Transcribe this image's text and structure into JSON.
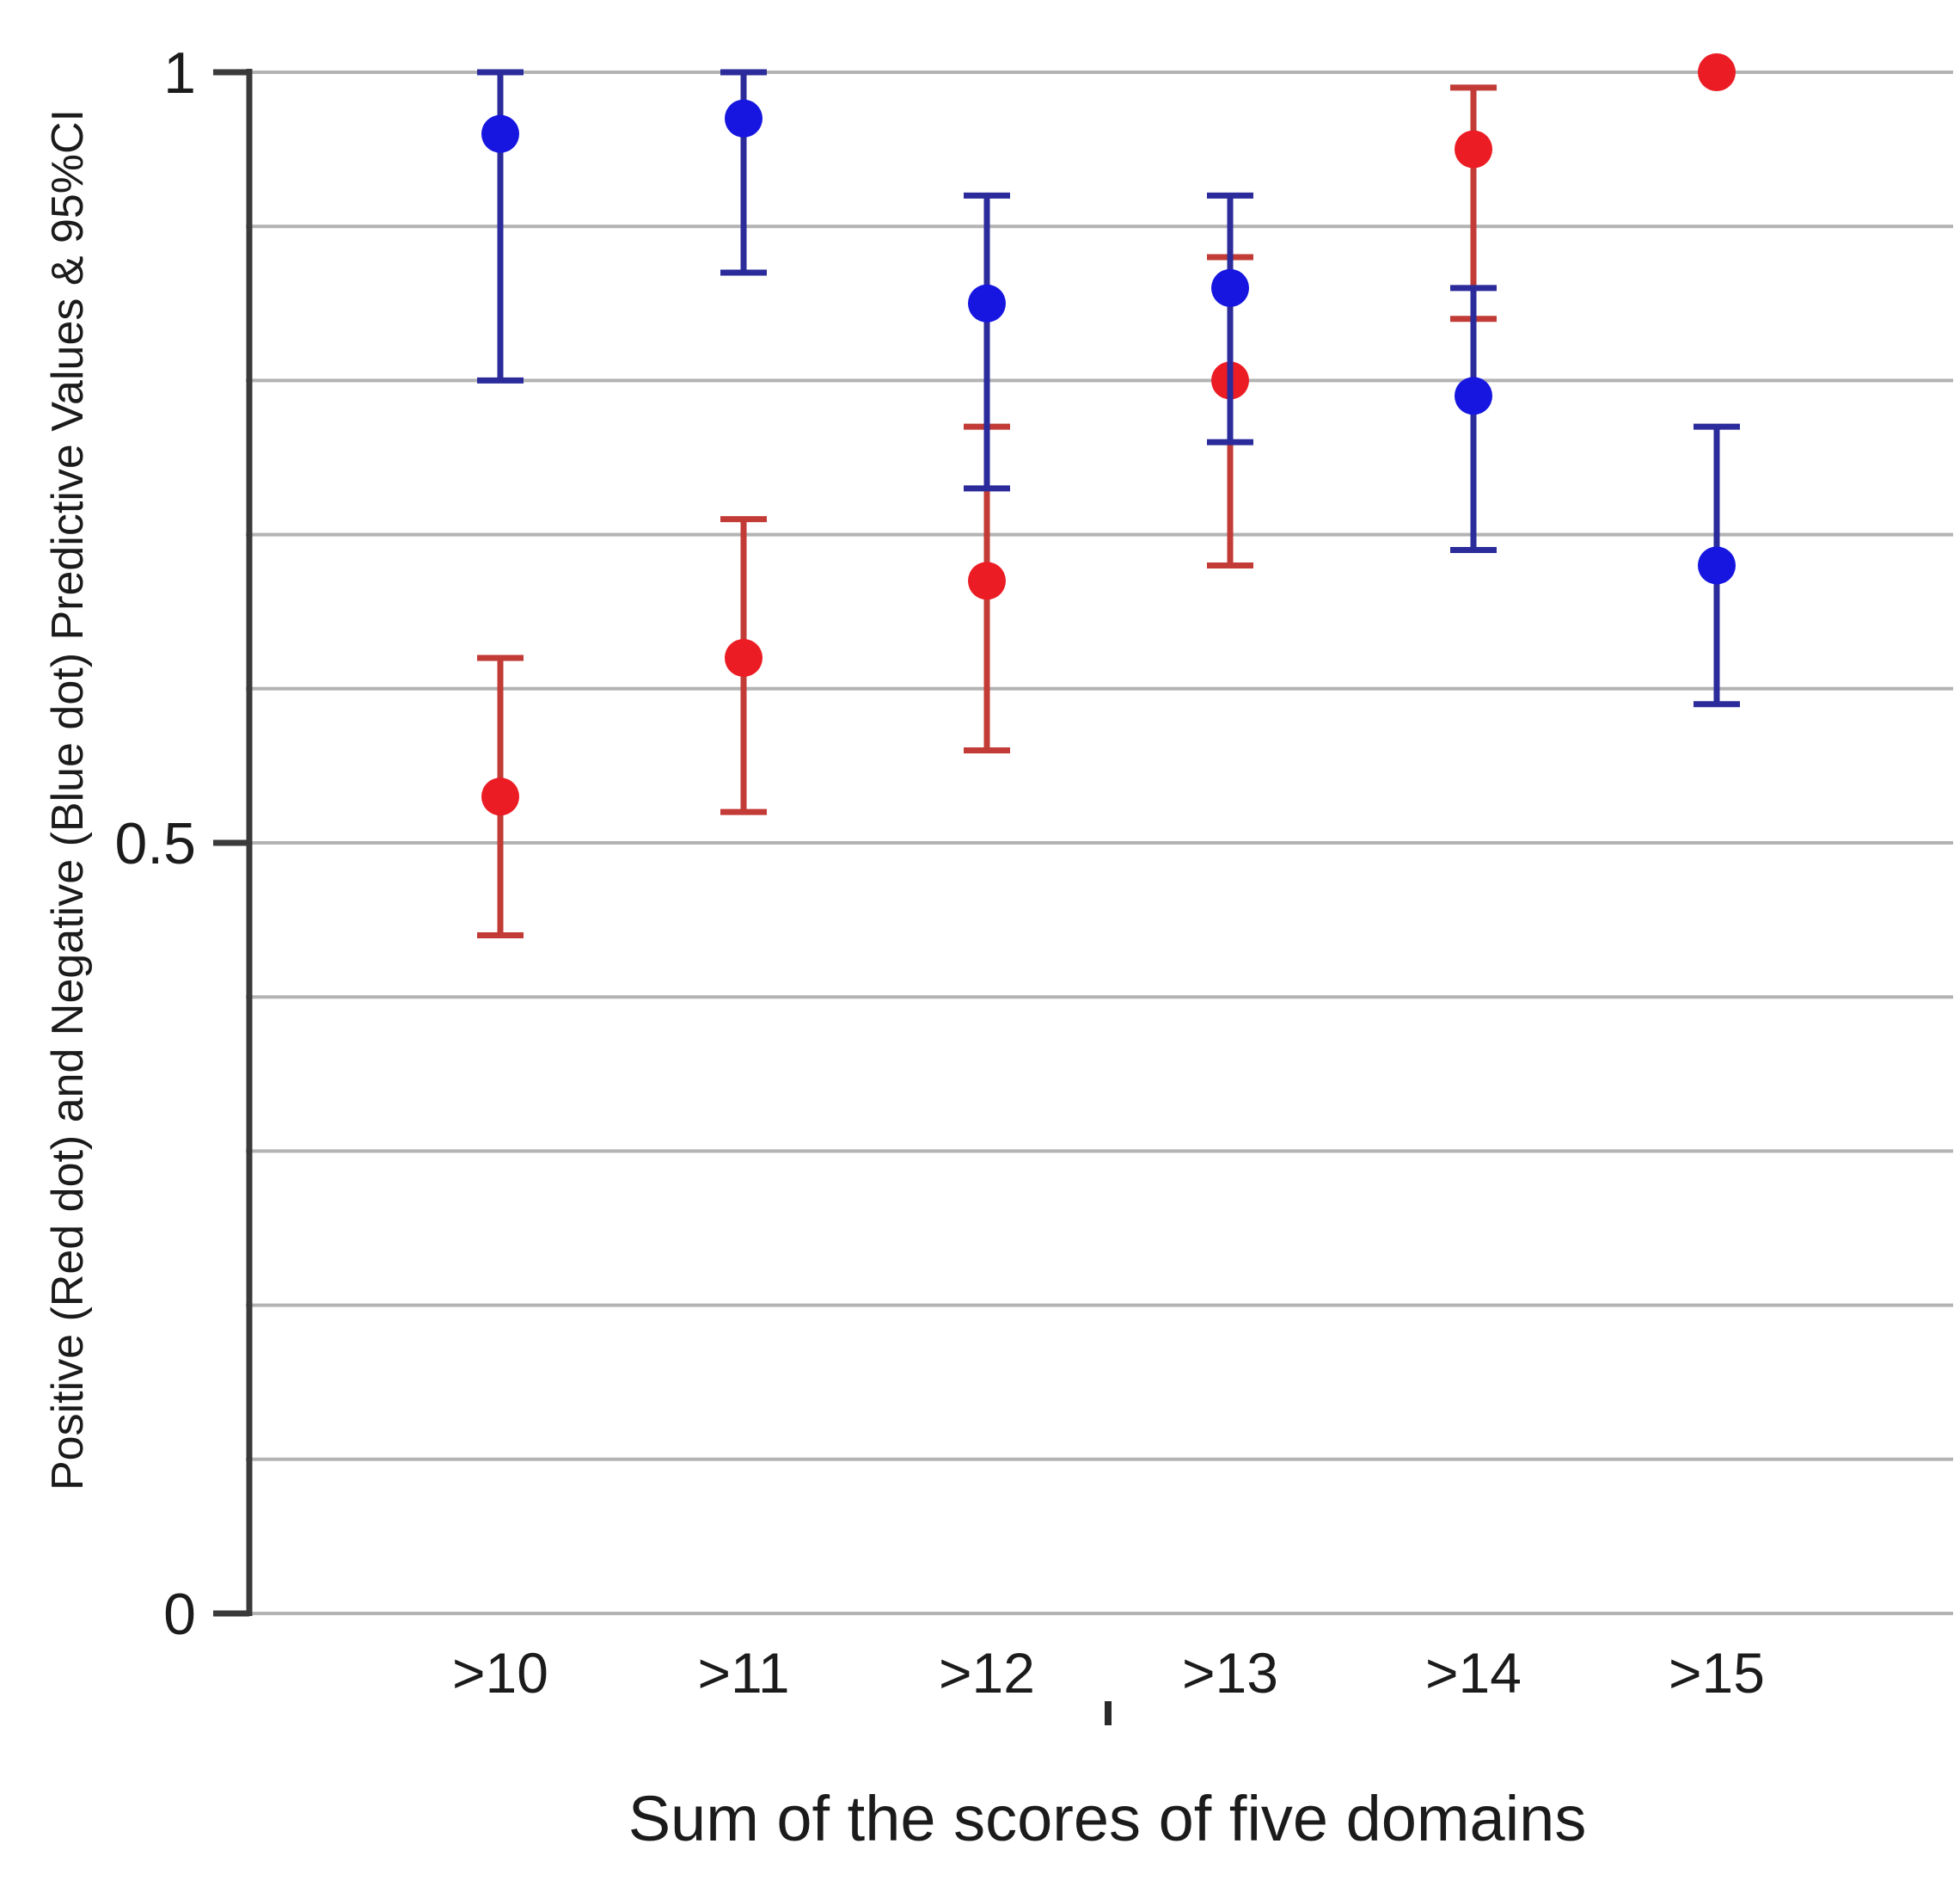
{
  "chart_data": {
    "type": "scatter",
    "categories": [
      ">10",
      ">11",
      ">12",
      ">13",
      ">14",
      ">15"
    ],
    "series": [
      {
        "name": "Positive Predictive Value (Red dot)",
        "dot_color": "#ec1c24",
        "line_color": "#c23b36",
        "values": [
          0.53,
          0.62,
          0.67,
          0.8,
          0.95,
          1.0
        ],
        "ci_low": [
          0.44,
          0.52,
          0.56,
          0.68,
          0.84,
          null
        ],
        "ci_high": [
          0.62,
          0.71,
          0.77,
          0.88,
          0.99,
          null
        ]
      },
      {
        "name": "Negative Predictive Value (Blue dot)",
        "dot_color": "#1616e0",
        "line_color": "#2b2b9b",
        "values": [
          0.96,
          0.97,
          0.85,
          0.86,
          0.79,
          0.68
        ],
        "ci_low": [
          0.8,
          0.87,
          0.73,
          0.76,
          0.69,
          0.59
        ],
        "ci_high": [
          1.0,
          1.0,
          0.92,
          0.92,
          0.86,
          0.77
        ]
      }
    ],
    "title": "",
    "xlabel": "Sum of the scores of five domains",
    "ylabel": "Positive (Red dot) and Negative (Blue dot) Predictive Values & 95%CI",
    "ylim": [
      0,
      1
    ],
    "ytick_values": [
      0,
      0.5,
      1
    ],
    "ytick_labels": [
      "0",
      "0.5",
      "1"
    ],
    "grid": true,
    "grid_step": 0.1,
    "grid_color": "#b3b3b3",
    "axis_color": "#3a3a3a",
    "legend": "none"
  }
}
